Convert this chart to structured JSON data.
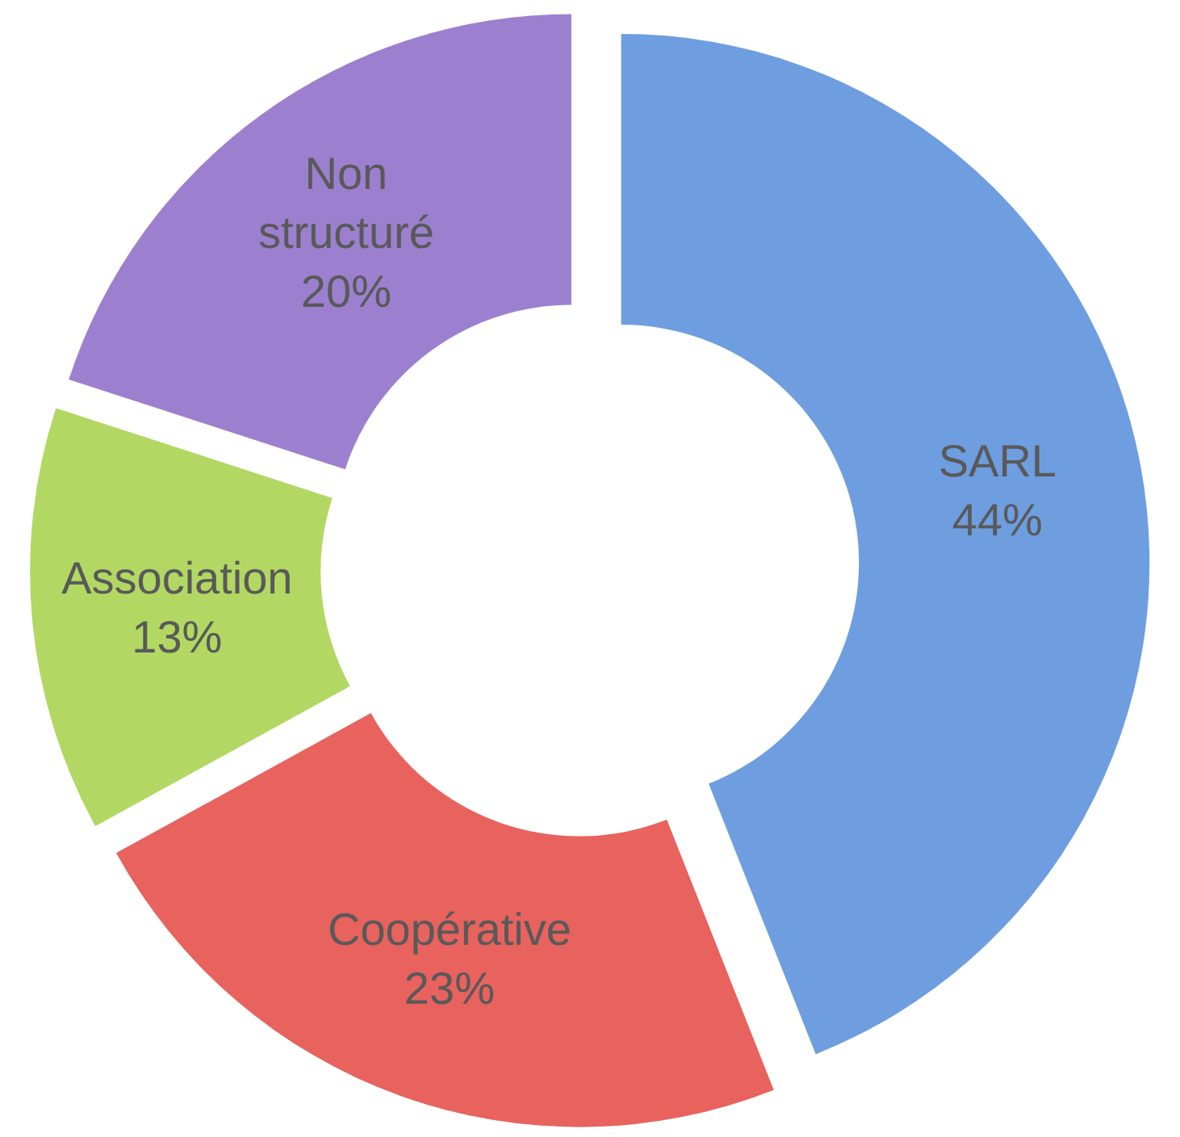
{
  "chart_data": {
    "type": "donut",
    "categories": [
      "SARL",
      "Coopérative",
      "Association",
      "Non structuré"
    ],
    "values": [
      44,
      23,
      13,
      20
    ],
    "value_labels": [
      "44%",
      "23%",
      "13%",
      "20%"
    ],
    "colors": [
      "#6e9ee0",
      "#e8625e",
      "#b2d863",
      "#9c80cf"
    ],
    "legend": false
  }
}
